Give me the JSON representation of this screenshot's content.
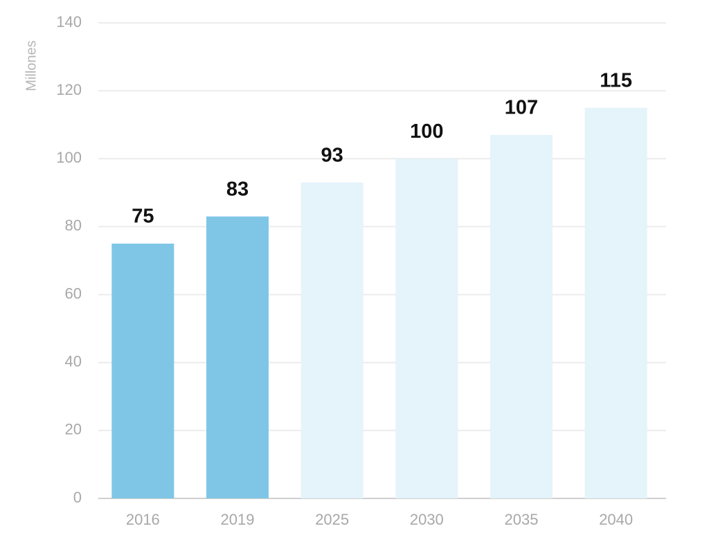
{
  "chart_data": {
    "type": "bar",
    "y_label": "Millones",
    "categories": [
      "2016",
      "2019",
      "2025",
      "2030",
      "2035",
      "2040"
    ],
    "values": [
      75,
      83,
      93,
      100,
      107,
      115
    ],
    "colors": [
      "#7fc6e6",
      "#7fc6e6",
      "#e5f3fb",
      "#e5f3fb",
      "#e5f3fb",
      "#e5f3fb"
    ],
    "ylim": [
      0,
      140
    ],
    "yticks": [
      0,
      20,
      40,
      60,
      80,
      100,
      120,
      140
    ],
    "grid": true
  }
}
